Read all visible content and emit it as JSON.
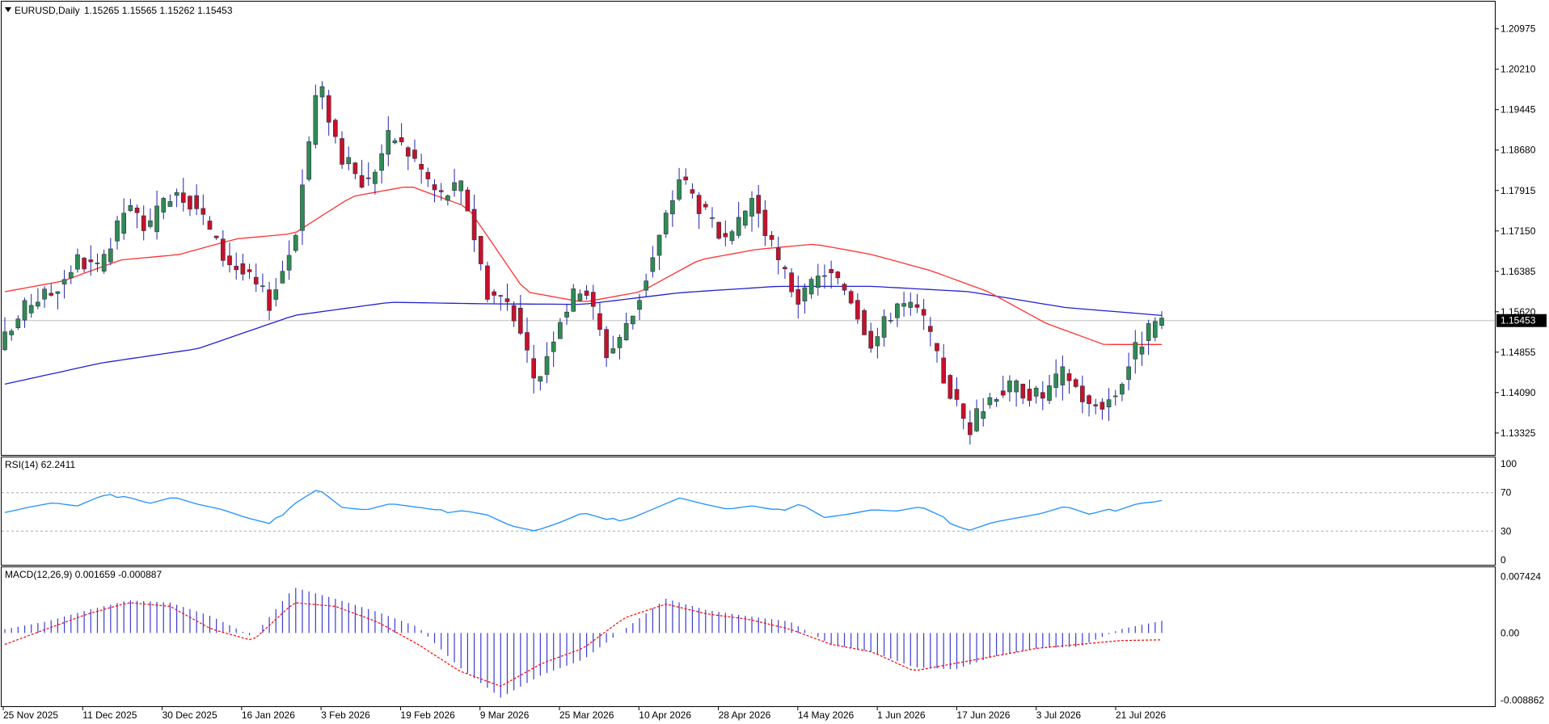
{
  "window": {
    "symbol": "EURUSD",
    "timeframe": "Daily",
    "header_label": "EURUSD,Daily",
    "ohlc_text": "1.15265 1.15565 1.15262 1.15453",
    "menu_icon": "triangle-down-icon"
  },
  "colors": {
    "background": "#ffffff",
    "bull_candle": "#2e8b57",
    "bear_candle": "#c8102e",
    "wick": "#2222aa",
    "ma_fast": "#ff3030",
    "ma_slow": "#2020d0",
    "rsi_line": "#1e90ff",
    "macd_hist": "#3a3ad8",
    "macd_signal": "#ff0000",
    "grid_dash": "#aaaaaa",
    "current_price_bg": "#000000",
    "current_price_fg": "#ffffff"
  },
  "chart_data": [
    {
      "type": "candlestick",
      "title": "EURUSD,Daily",
      "ohlc_label": "1.15265 1.15565 1.15262 1.15453",
      "y_ticks": [
        "1.20975",
        "1.20210",
        "1.19445",
        "1.18680",
        "1.17915",
        "1.17150",
        "1.16385",
        "1.15620",
        "1.14855",
        "1.14090",
        "1.13325"
      ],
      "ylim": [
        1.1291,
        1.2149
      ],
      "current_price": "1.15453",
      "x_labels": [
        "25 Nov 2025",
        "11 Dec 2025",
        "30 Dec 2025",
        "16 Jan 2026",
        "3 Feb 2026",
        "19 Feb 2026",
        "9 Mar 2026",
        "25 Mar 2026",
        "10 Apr 2026",
        "28 Apr 2026",
        "14 May 2026",
        "1 Jun 2026",
        "17 Jun 2026",
        "3 Jul 2026",
        "21 Jul 2026"
      ],
      "series": [
        {
          "kind": "close_anchors",
          "values": [
            1.151,
            1.158,
            1.16,
            1.166,
            1.164,
            1.176,
            1.172,
            1.18,
            1.176,
            1.167,
            1.163,
            1.158,
            1.17,
            1.2,
            1.185,
            1.18,
            1.19,
            1.185,
            1.178,
            1.18,
            1.16,
            1.158,
            1.142,
            1.155,
            1.162,
            1.148,
            1.155,
            1.168,
            1.182,
            1.175,
            1.168,
            1.178,
            1.166,
            1.158,
            1.164,
            1.16,
            1.15,
            1.158,
            1.156,
            1.143,
            1.134,
            1.141,
            1.142,
            1.14,
            1.145,
            1.138,
            1.14,
            1.15,
            1.155
          ]
        },
        {
          "kind": "ma_fast_anchors",
          "values": [
            1.16,
            1.162,
            1.166,
            1.167,
            1.17,
            1.171,
            1.178,
            1.18,
            1.176,
            1.16,
            1.158,
            1.16,
            1.166,
            1.168,
            1.169,
            1.167,
            1.164,
            1.16,
            1.154,
            1.15,
            1.15
          ]
        },
        {
          "kind": "ma_slow_anchors",
          "values": [
            1.1425,
            1.1465,
            1.1492,
            1.1555,
            1.158,
            1.1577,
            1.1576,
            1.1598,
            1.161,
            1.161,
            1.16,
            1.157,
            1.1555
          ]
        }
      ]
    },
    {
      "type": "line",
      "title": "RSI(14) 62.2411",
      "y_ticks": [
        "100",
        "70",
        "30",
        "0"
      ],
      "levels": [
        70,
        30
      ],
      "ylim": [
        0,
        100
      ],
      "series": [
        {
          "name": "RSI(14)",
          "values": [
            50,
            55,
            59,
            55,
            65,
            68,
            60,
            66,
            58,
            52,
            43,
            36,
            60,
            75,
            55,
            52,
            58,
            54,
            50,
            53,
            48,
            36,
            30,
            38,
            48,
            40,
            45,
            55,
            65,
            58,
            52,
            55,
            50,
            60,
            45,
            48,
            52,
            50,
            54,
            42,
            32,
            40,
            44,
            48,
            55,
            46,
            52,
            60,
            62
          ]
        }
      ]
    },
    {
      "type": "bar",
      "title": "MACD(12,26,9) 0.001659 -0.000887",
      "y_ticks": [
        "0.007424",
        "0.00",
        "-0.008862"
      ],
      "ylim": [
        -0.009,
        0.0078
      ],
      "series": [
        {
          "name": "MACD histogram",
          "values": [
            0.0005,
            0.0015,
            0.003,
            0.0043,
            0.004,
            0.0022,
            -0.0005,
            0.006,
            0.0045,
            0.0028,
            0.0008,
            -0.0045,
            -0.0085,
            -0.0055,
            -0.0035,
            0.0005,
            0.0045,
            0.003,
            0.0022,
            0.0015,
            -0.0015,
            -0.0025,
            -0.0045,
            -0.0048,
            -0.003,
            -0.002,
            -0.0018,
            0.0005,
            0.0016
          ]
        },
        {
          "name": "Signal",
          "values": [
            -0.0015,
            0.0005,
            0.0025,
            0.004,
            0.0035,
            0.0005,
            -0.001,
            0.004,
            0.0035,
            0.0015,
            -0.0015,
            -0.005,
            -0.007,
            -0.004,
            -0.002,
            0.002,
            0.0038,
            0.0025,
            0.0018,
            0.0005,
            -0.0015,
            -0.0025,
            -0.005,
            -0.004,
            -0.003,
            -0.002,
            -0.0015,
            -0.001,
            -0.0009
          ]
        }
      ]
    }
  ],
  "rsi_label": "RSI(14) 62.2411",
  "macd_label": "MACD(12,26,9) 0.001659 -0.000887"
}
